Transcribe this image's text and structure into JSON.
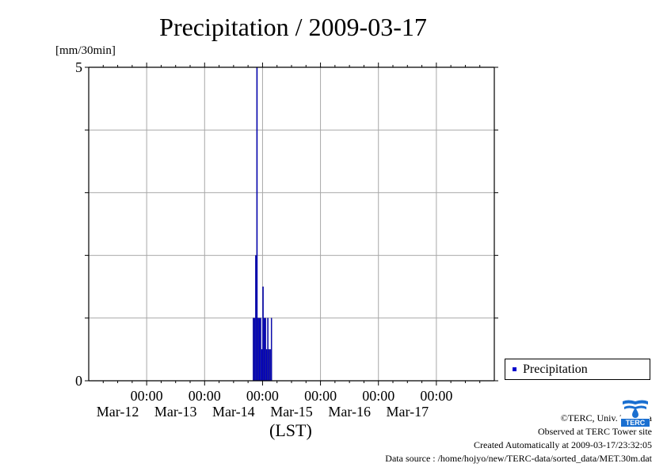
{
  "chart_data": {
    "type": "bar",
    "title": "Precipitation / 2009-03-17",
    "unit_label": "[mm/30min]",
    "xlabel": "(LST)",
    "ylim": [
      0,
      5
    ],
    "y_tick_labels": [
      "0",
      "5"
    ],
    "xlim": [
      "2009-03-11 00:00",
      "2009-03-18 00:00"
    ],
    "x_tick_labels": [
      {
        "time": "00:00",
        "date": "Mar-12"
      },
      {
        "time": "00:00",
        "date": "Mar-13"
      },
      {
        "time": "00:00",
        "date": "Mar-14"
      },
      {
        "time": "00:00",
        "date": "Mar-15"
      },
      {
        "time": "00:00",
        "date": "Mar-16"
      },
      {
        "time": "00:00",
        "date": "Mar-17"
      }
    ],
    "grid": true,
    "legend_position": "right",
    "series": [
      {
        "name": "Precipitation",
        "color": "#0000cc",
        "points": [
          {
            "t": "2009-03-13 20:00",
            "v": 1.0
          },
          {
            "t": "2009-03-13 20:30",
            "v": 1.0
          },
          {
            "t": "2009-03-13 21:00",
            "v": 2.0
          },
          {
            "t": "2009-03-13 21:30",
            "v": 5.0
          },
          {
            "t": "2009-03-13 22:00",
            "v": 1.0
          },
          {
            "t": "2009-03-13 22:30",
            "v": 1.0
          },
          {
            "t": "2009-03-13 23:00",
            "v": 1.0
          },
          {
            "t": "2009-03-13 23:30",
            "v": 0.5
          },
          {
            "t": "2009-03-14 00:00",
            "v": 1.5
          },
          {
            "t": "2009-03-14 00:30",
            "v": 1.0
          },
          {
            "t": "2009-03-14 01:00",
            "v": 1.0
          },
          {
            "t": "2009-03-14 01:30",
            "v": 0.5
          },
          {
            "t": "2009-03-14 02:00",
            "v": 1.0
          },
          {
            "t": "2009-03-14 02:30",
            "v": 0.5
          },
          {
            "t": "2009-03-14 03:00",
            "v": 0.5
          },
          {
            "t": "2009-03-14 03:30",
            "v": 1.0
          }
        ]
      }
    ]
  },
  "legend": {
    "label": "Precipitation",
    "color": "#0000cc"
  },
  "footer": {
    "copyright": "©TERC, Univ. Tsukuba",
    "observed": "Observed at TERC Tower site",
    "created": "Created Automatically at 2009-03-17/23:32:05",
    "source": "Data source : /home/hojyo/new/TERC-data/sorted_data/MET.30m.dat"
  },
  "logo": {
    "text": "TERC",
    "color": "#1a6fd0"
  }
}
